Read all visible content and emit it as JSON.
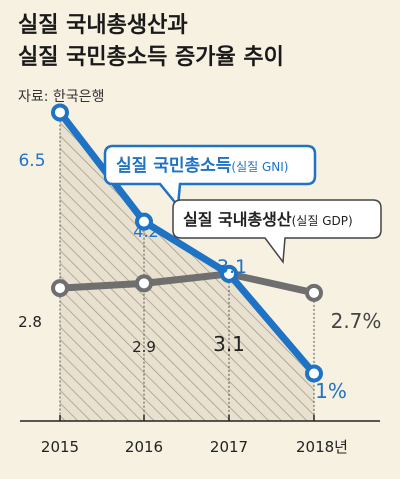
{
  "header": {
    "title_line1": "실질 국내총생산과",
    "title_line2": "실질 국민총소득 증가율 추이",
    "source": "자료: 한국은행"
  },
  "chart_data": {
    "type": "line",
    "categories": [
      "2015",
      "2016",
      "2017",
      "2018년"
    ],
    "series": [
      {
        "name": "실질 국민총소득",
        "name_suffix": "(실질 GNI)",
        "values": [
          6.5,
          4.2,
          3.1,
          1
        ],
        "labels": [
          "6.5",
          "4.2",
          "3.1",
          "1%"
        ],
        "color": "#1f73c4"
      },
      {
        "name": "실질 국내총생산",
        "name_suffix": "(실질 GDP)",
        "values": [
          2.8,
          2.9,
          3.1,
          2.7
        ],
        "labels": [
          "2.8",
          "2.9",
          "3.1",
          "2.7%"
        ],
        "color": "#6f6f6f"
      }
    ],
    "ylim": [
      0,
      7.5
    ],
    "title": "",
    "xlabel": "",
    "ylabel": ""
  },
  "colors": {
    "background": "#f7f1e2",
    "hatch_fill": "#e9e1cf",
    "hatch_line": "#a89e88"
  }
}
